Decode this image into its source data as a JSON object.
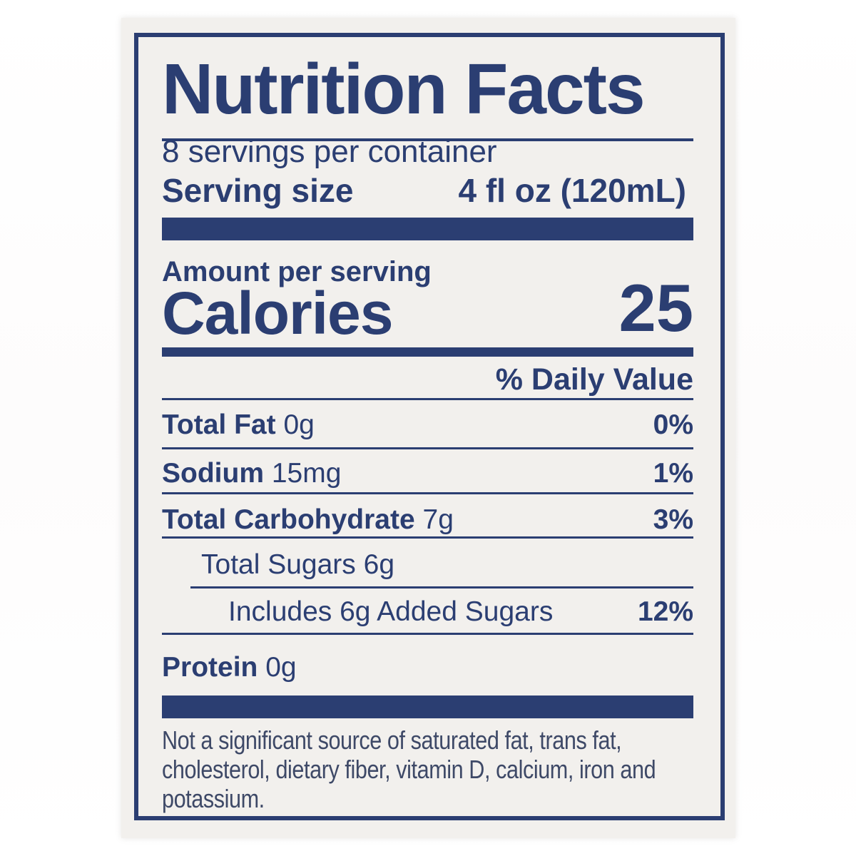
{
  "label": {
    "title": "Nutrition Facts",
    "servings_per_container": "8 servings per container",
    "serving_size": {
      "label": "Serving size",
      "value": "4 fl oz (120mL)"
    },
    "amount_per_serving": "Amount per serving",
    "calories": {
      "label": "Calories",
      "value": "25"
    },
    "daily_value_header": "% Daily Value",
    "rows": [
      {
        "name": "Total Fat",
        "amount": "0g",
        "daily_value": "0%"
      },
      {
        "name": "Sodium",
        "amount": "15mg",
        "daily_value": "1%"
      },
      {
        "name": "Total Carbohydrate",
        "amount": "7g",
        "daily_value": "3%"
      },
      {
        "name": "Total Sugars",
        "amount": "6g",
        "daily_value": ""
      },
      {
        "name": "Includes 6g Added Sugars",
        "amount": "",
        "daily_value": "12%"
      },
      {
        "name": "Protein",
        "amount": "0g",
        "daily_value": ""
      }
    ],
    "footnote": "Not a significant source of saturated fat, trans fat, cholesterol, dietary fiber, vitamin D, calcium, iron and potassium.",
    "colors": {
      "ink_navy": "#2b3e72",
      "card_background": "#f2f0ed",
      "footnote_text": "#3e4967",
      "page_background": "#ffffff"
    }
  }
}
